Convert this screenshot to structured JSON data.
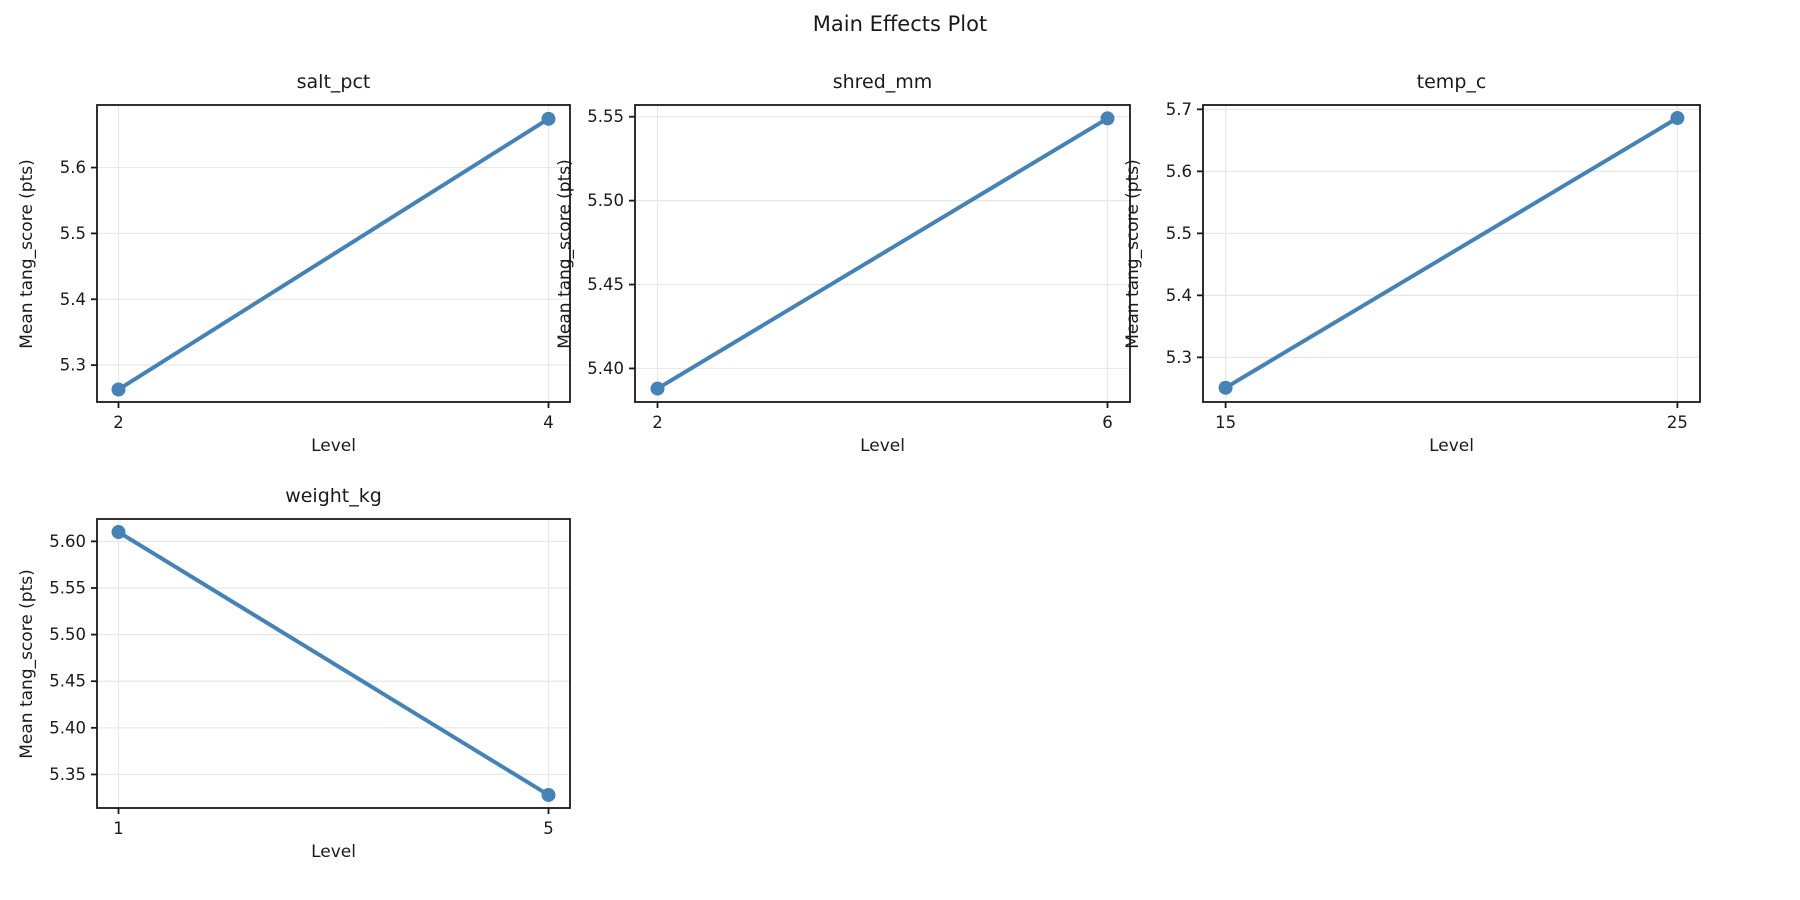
{
  "figure": {
    "title": "Main Effects Plot",
    "background": "#ffffff"
  },
  "style": {
    "line_color": "#4682B4",
    "marker_color": "#4682B4",
    "grid_color": "#e8e8e8",
    "axis_color": "#1a1a1a",
    "text_color": "#1a1a1a"
  },
  "chart_data": {
    "type": "line",
    "title": "Main Effects Plot",
    "layout": "2-row grid, 4 subplots (3 top, 1 bottom-left), grid on, no legend",
    "subplots": [
      {
        "title": "salt_pct",
        "xlabel": "Level",
        "ylabel": "Mean tang_score (pts)",
        "x": [
          2,
          4
        ],
        "x_tick_labels": [
          "2",
          "4"
        ],
        "y": [
          5.263,
          5.674
        ],
        "xlim": [
          1.9,
          4.1
        ],
        "ylim": [
          5.244,
          5.695
        ],
        "yticks": [
          5.3,
          5.4,
          5.5,
          5.6
        ],
        "y_tick_labels": [
          "5.3",
          "5.4",
          "5.5",
          "5.6"
        ]
      },
      {
        "title": "shred_mm",
        "xlabel": "Level",
        "ylabel": "Mean tang_score (pts)",
        "x": [
          2,
          6
        ],
        "x_tick_labels": [
          "2",
          "6"
        ],
        "y": [
          5.388,
          5.549
        ],
        "xlim": [
          1.8,
          6.2
        ],
        "ylim": [
          5.38,
          5.557
        ],
        "yticks": [
          5.4,
          5.45,
          5.5,
          5.55
        ],
        "y_tick_labels": [
          "5.40",
          "5.45",
          "5.50",
          "5.55"
        ]
      },
      {
        "title": "temp_c",
        "xlabel": "Level",
        "ylabel": "Mean tang_score (pts)",
        "x": [
          15,
          25
        ],
        "x_tick_labels": [
          "15",
          "25"
        ],
        "y": [
          5.251,
          5.686
        ],
        "xlim": [
          14.5,
          25.5
        ],
        "ylim": [
          5.228,
          5.707
        ],
        "yticks": [
          5.3,
          5.4,
          5.5,
          5.6,
          5.7
        ],
        "y_tick_labels": [
          "5.3",
          "5.4",
          "5.5",
          "5.6",
          "5.7"
        ]
      },
      {
        "title": "weight_kg",
        "xlabel": "Level",
        "ylabel": "Mean tang_score (pts)",
        "x": [
          1,
          5
        ],
        "x_tick_labels": [
          "1",
          "5"
        ],
        "y": [
          5.61,
          5.328
        ],
        "xlim": [
          0.8,
          5.2
        ],
        "ylim": [
          5.314,
          5.624
        ],
        "yticks": [
          5.35,
          5.4,
          5.45,
          5.5,
          5.55,
          5.6
        ],
        "y_tick_labels": [
          "5.35",
          "5.40",
          "5.45",
          "5.50",
          "5.55",
          "5.60"
        ]
      }
    ]
  }
}
